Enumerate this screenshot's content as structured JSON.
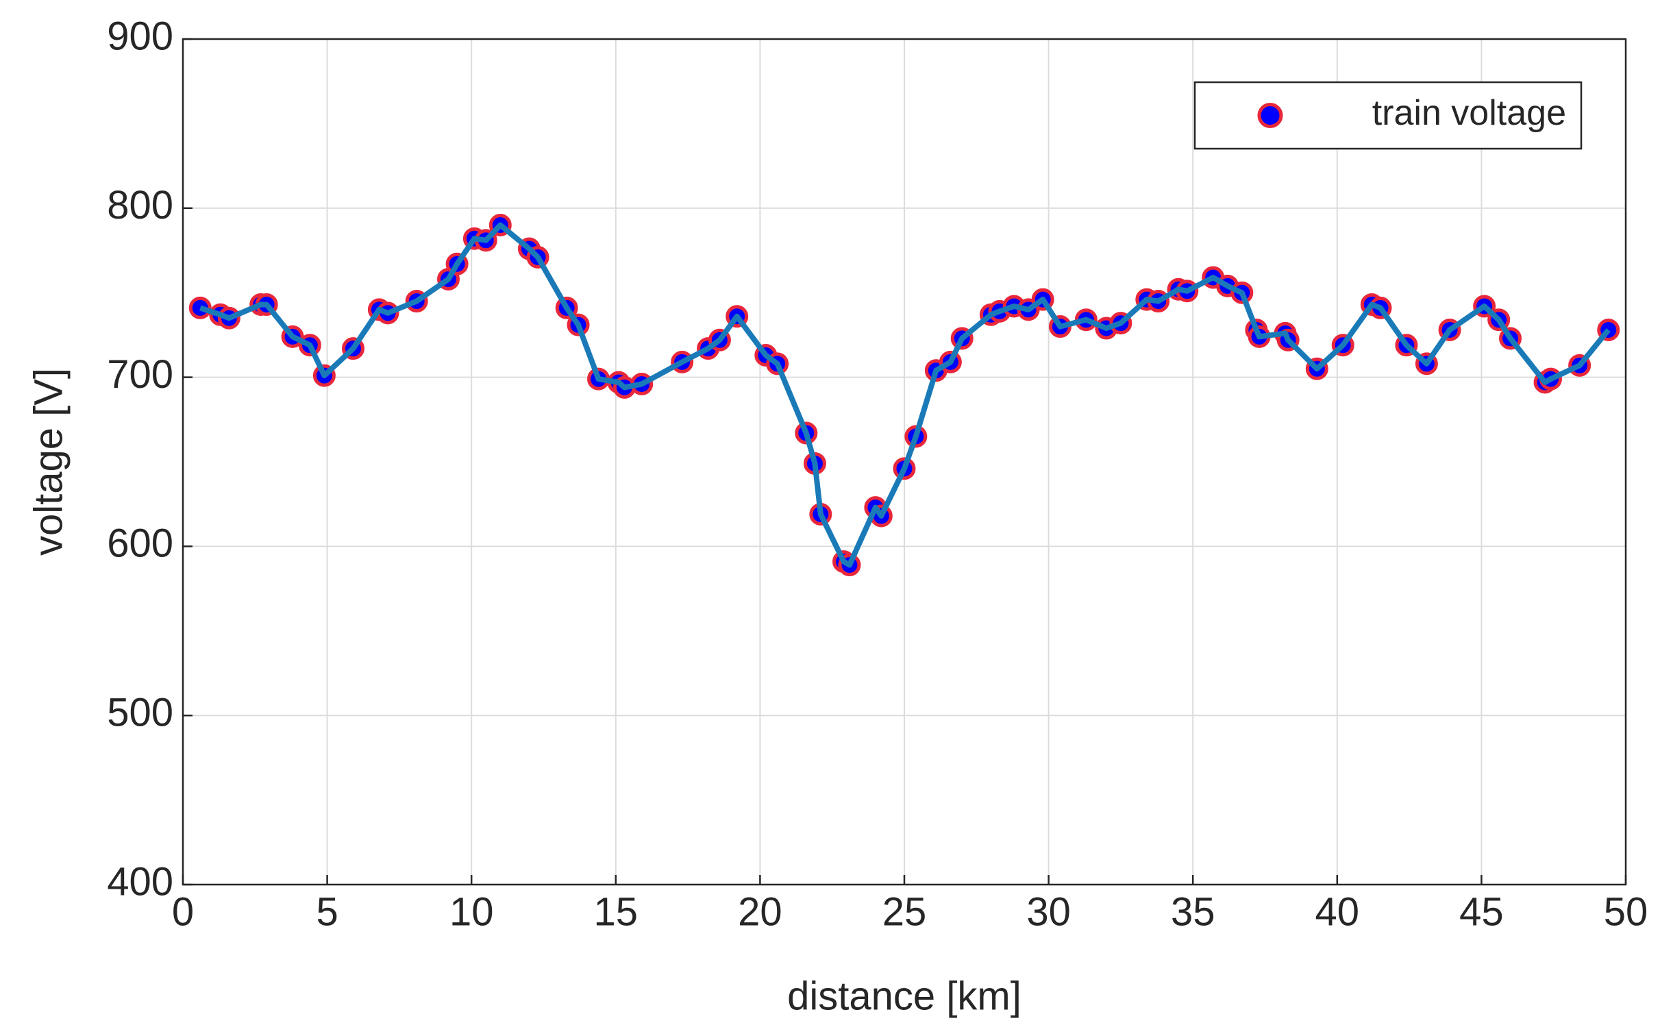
{
  "chart_data": {
    "type": "line",
    "x_label": "distance [km]",
    "y_label": "voltage [V]",
    "x": [
      0.6,
      1.3,
      1.6,
      2.7,
      2.9,
      3.8,
      4.4,
      4.9,
      5.9,
      6.8,
      7.1,
      8.1,
      9.2,
      9.5,
      10.1,
      10.5,
      11.0,
      12.0,
      12.3,
      13.3,
      13.7,
      14.4,
      15.1,
      15.3,
      15.9,
      17.3,
      18.2,
      18.6,
      19.2,
      20.2,
      20.6,
      21.6,
      21.9,
      22.1,
      22.9,
      23.1,
      24.0,
      24.2,
      25.0,
      25.4,
      26.1,
      26.6,
      27.0,
      28.0,
      28.3,
      28.8,
      29.3,
      29.8,
      30.4,
      31.3,
      32.0,
      32.5,
      33.4,
      33.8,
      34.5,
      34.8,
      35.7,
      36.2,
      36.7,
      37.2,
      37.3,
      38.2,
      38.3,
      39.3,
      40.2,
      41.2,
      41.5,
      42.4,
      43.1,
      43.9,
      45.1,
      45.6,
      46.0,
      47.2,
      47.4,
      48.4,
      49.4
    ],
    "series": [
      {
        "name": "train voltage",
        "color": "#1a7ab8",
        "marker_color": "#0000ff",
        "marker_edge_color": "#e8273b",
        "values": [
          741,
          737,
          735,
          743,
          743,
          724,
          719,
          701,
          717,
          740,
          738,
          745,
          758,
          767,
          782,
          781,
          790,
          776,
          771,
          741,
          731,
          699,
          697,
          694,
          696,
          709,
          717,
          722,
          736,
          713,
          708,
          667,
          649,
          619,
          591,
          589,
          623,
          618,
          646,
          665,
          704,
          709,
          723,
          737,
          739,
          742,
          740,
          746,
          730,
          734,
          729,
          732,
          746,
          745,
          752,
          751,
          759,
          754,
          750,
          728,
          724,
          726,
          722,
          705,
          719,
          743,
          741,
          719,
          708,
          728,
          742,
          734,
          723,
          697,
          699,
          707,
          728
        ]
      }
    ],
    "xlim": [
      0,
      50
    ],
    "xticks": [
      0,
      5,
      10,
      15,
      20,
      25,
      30,
      35,
      40,
      45,
      50
    ],
    "ylim": [
      400,
      900
    ],
    "yticks": [
      400,
      500,
      600,
      700,
      800,
      900
    ],
    "grid": true,
    "legend": "upper right"
  }
}
